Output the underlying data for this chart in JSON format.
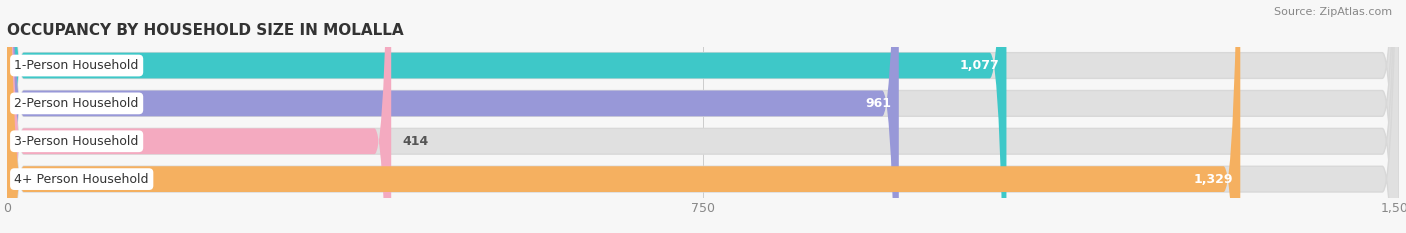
{
  "title": "OCCUPANCY BY HOUSEHOLD SIZE IN MOLALLA",
  "source": "Source: ZipAtlas.com",
  "categories": [
    "1-Person Household",
    "2-Person Household",
    "3-Person Household",
    "4+ Person Household"
  ],
  "values": [
    1077,
    961,
    414,
    1329
  ],
  "bar_colors": [
    "#3ec8c8",
    "#9898d8",
    "#f4aac0",
    "#f5b060"
  ],
  "label_colors": [
    "white",
    "white",
    "#555555",
    "white"
  ],
  "xlim": [
    0,
    1500
  ],
  "xticks": [
    0,
    750,
    1500
  ],
  "background_color": "#f7f7f7",
  "bar_bg_color": "#e0e0e0",
  "title_fontsize": 11,
  "source_fontsize": 8,
  "tick_fontsize": 9,
  "bar_label_fontsize": 9,
  "category_fontsize": 9
}
